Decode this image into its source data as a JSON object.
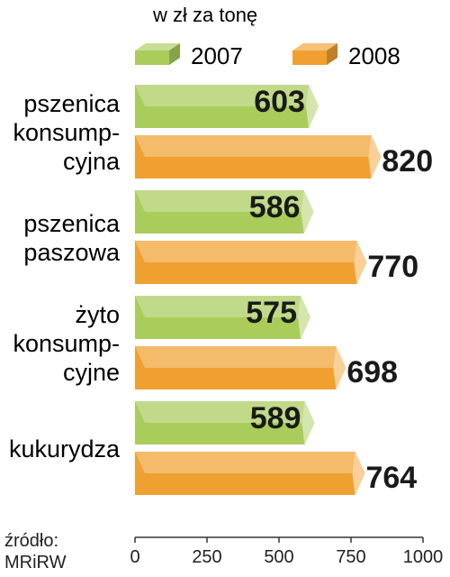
{
  "chart_data": {
    "type": "bar",
    "orientation": "horizontal",
    "subtitle": "w zł za tonę",
    "categories": [
      [
        "pszenica",
        "konsump-",
        "cyjna"
      ],
      [
        "pszenica",
        "paszowa"
      ],
      [
        "żyto",
        "konsump-",
        "cyjne"
      ],
      [
        "kukurydza"
      ]
    ],
    "series": [
      {
        "name": "2007",
        "values": [
          603,
          586,
          575,
          589
        ],
        "color": "#a9cc5b"
      },
      {
        "name": "2008",
        "values": [
          820,
          770,
          698,
          764
        ],
        "color": "#f0a030"
      }
    ],
    "xlim": [
      0,
      1000
    ],
    "xticks": [
      "0",
      "250",
      "500",
      "750",
      "1000"
    ],
    "legend_position": "top",
    "grid": false,
    "source": [
      "źródło:",
      "MRiRW"
    ]
  }
}
